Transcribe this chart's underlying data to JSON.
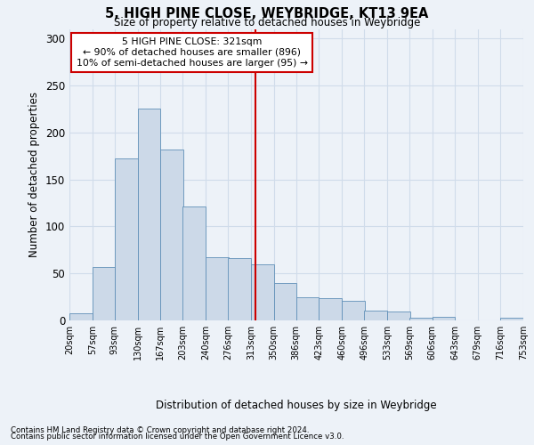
{
  "title1": "5, HIGH PINE CLOSE, WEYBRIDGE, KT13 9EA",
  "title2": "Size of property relative to detached houses in Weybridge",
  "xlabel": "Distribution of detached houses by size in Weybridge",
  "ylabel": "Number of detached properties",
  "footer1": "Contains HM Land Registry data © Crown copyright and database right 2024.",
  "footer2": "Contains public sector information licensed under the Open Government Licence v3.0.",
  "annotation_title": "5 HIGH PINE CLOSE: 321sqm",
  "annotation_line1": "← 90% of detached houses are smaller (896)",
  "annotation_line2": "10% of semi-detached houses are larger (95) →",
  "property_size": 321,
  "bin_edges": [
    20,
    57,
    93,
    130,
    167,
    203,
    240,
    276,
    313,
    350,
    386,
    423,
    460,
    496,
    533,
    569,
    606,
    643,
    679,
    716,
    753
  ],
  "bar_heights": [
    8,
    57,
    172,
    225,
    182,
    121,
    67,
    66,
    60,
    40,
    25,
    24,
    21,
    10,
    9,
    3,
    4,
    0,
    0,
    3
  ],
  "bar_color": "#ccd9e8",
  "bar_edge_color": "#6090b8",
  "vline_color": "#cc0000",
  "vline_x": 321,
  "annotation_box_edge_color": "#cc0000",
  "annotation_box_face_color": "#ffffff",
  "grid_color": "#d0dcea",
  "background_color": "#edf2f8",
  "ylim": [
    0,
    310
  ],
  "yticks": [
    0,
    50,
    100,
    150,
    200,
    250,
    300
  ]
}
